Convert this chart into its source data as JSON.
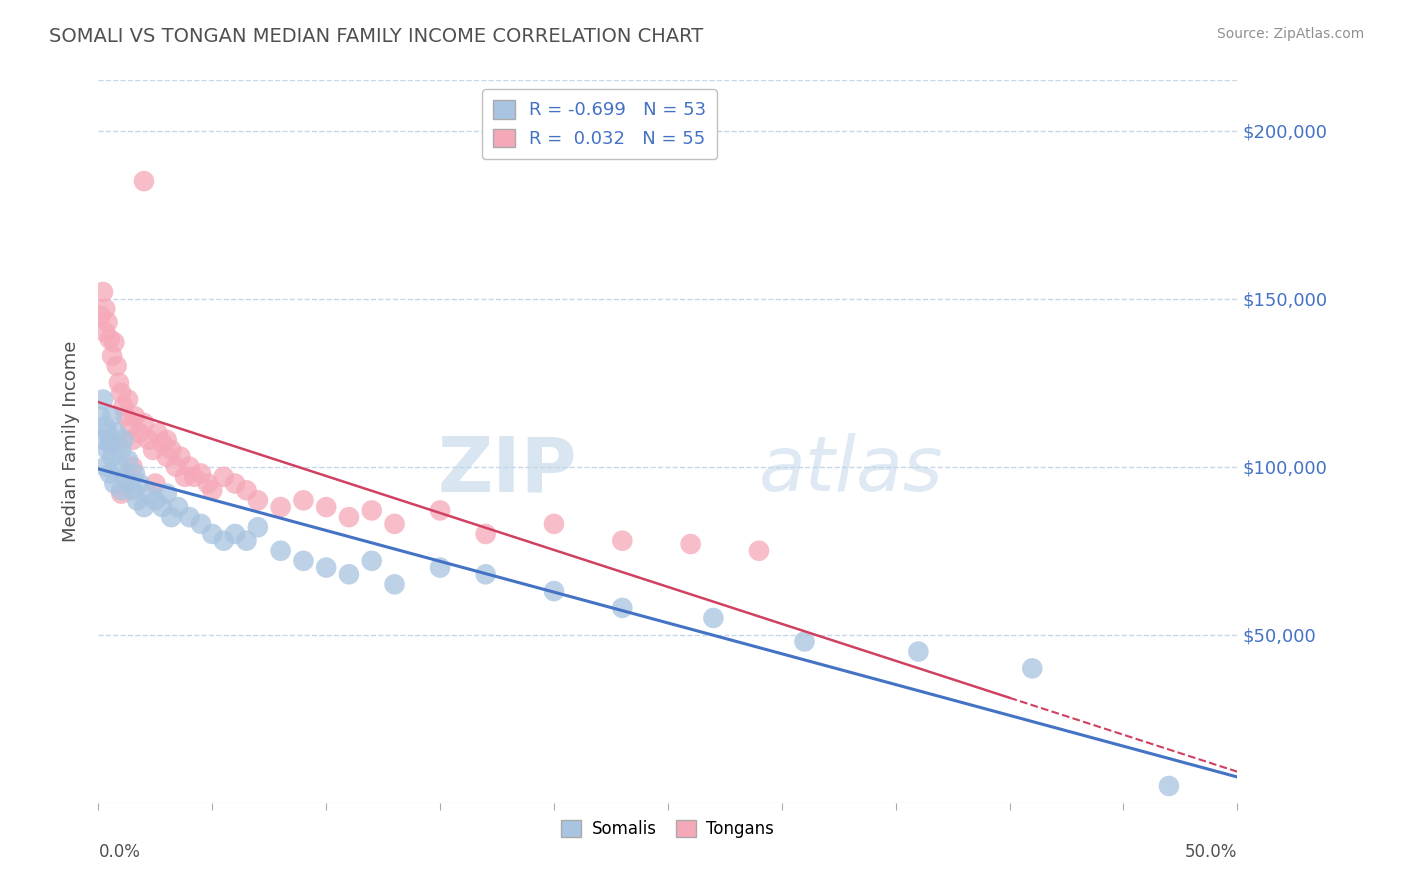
{
  "title": "SOMALI VS TONGAN MEDIAN FAMILY INCOME CORRELATION CHART",
  "source": "Source: ZipAtlas.com",
  "ylabel": "Median Family Income",
  "y_ticks": [
    50000,
    100000,
    150000,
    200000
  ],
  "y_tick_labels": [
    "$50,000",
    "$100,000",
    "$150,000",
    "$200,000"
  ],
  "xlim": [
    0.0,
    0.5
  ],
  "ylim": [
    0,
    215000
  ],
  "somali_R": "-0.699",
  "somali_N": "53",
  "tongan_R": "0.032",
  "tongan_N": "55",
  "somali_color": "#a8c4e0",
  "tongan_color": "#f5a8b8",
  "somali_line_color": "#4472c4",
  "tongan_line_color": "#d04060",
  "legend_label_somali": "Somalis",
  "legend_label_tongan": "Tongans",
  "somali_points_x": [
    0.001,
    0.002,
    0.002,
    0.003,
    0.003,
    0.004,
    0.004,
    0.005,
    0.005,
    0.006,
    0.006,
    0.007,
    0.008,
    0.009,
    0.01,
    0.01,
    0.011,
    0.012,
    0.013,
    0.014,
    0.015,
    0.016,
    0.017,
    0.018,
    0.02,
    0.022,
    0.025,
    0.028,
    0.03,
    0.032,
    0.035,
    0.04,
    0.045,
    0.05,
    0.055,
    0.06,
    0.065,
    0.07,
    0.08,
    0.09,
    0.1,
    0.11,
    0.12,
    0.13,
    0.15,
    0.17,
    0.2,
    0.23,
    0.27,
    0.31,
    0.36,
    0.41,
    0.47
  ],
  "somali_points_y": [
    115000,
    108000,
    120000,
    112000,
    100000,
    105000,
    110000,
    98000,
    107000,
    103000,
    115000,
    95000,
    110000,
    100000,
    93000,
    105000,
    108000,
    97000,
    102000,
    95000,
    93000,
    98000,
    90000,
    95000,
    88000,
    92000,
    90000,
    88000,
    92000,
    85000,
    88000,
    85000,
    83000,
    80000,
    78000,
    80000,
    78000,
    82000,
    75000,
    72000,
    70000,
    68000,
    72000,
    65000,
    70000,
    68000,
    63000,
    58000,
    55000,
    48000,
    45000,
    40000,
    5000
  ],
  "tongan_points_x": [
    0.001,
    0.002,
    0.003,
    0.003,
    0.004,
    0.005,
    0.006,
    0.007,
    0.008,
    0.009,
    0.01,
    0.011,
    0.012,
    0.013,
    0.014,
    0.015,
    0.016,
    0.018,
    0.02,
    0.022,
    0.024,
    0.026,
    0.028,
    0.03,
    0.032,
    0.034,
    0.036,
    0.038,
    0.04,
    0.042,
    0.045,
    0.048,
    0.05,
    0.055,
    0.06,
    0.065,
    0.07,
    0.08,
    0.09,
    0.1,
    0.11,
    0.12,
    0.13,
    0.15,
    0.17,
    0.2,
    0.23,
    0.26,
    0.29,
    0.02,
    0.01,
    0.008,
    0.025,
    0.015,
    0.03
  ],
  "tongan_points_y": [
    145000,
    152000,
    147000,
    140000,
    143000,
    138000,
    133000,
    137000,
    130000,
    125000,
    122000,
    118000,
    115000,
    120000,
    112000,
    108000,
    115000,
    110000,
    113000,
    108000,
    105000,
    110000,
    107000,
    103000,
    105000,
    100000,
    103000,
    97000,
    100000,
    97000,
    98000,
    95000,
    93000,
    97000,
    95000,
    93000,
    90000,
    88000,
    90000,
    88000,
    85000,
    87000,
    83000,
    87000,
    80000,
    83000,
    78000,
    77000,
    75000,
    185000,
    92000,
    107000,
    95000,
    100000,
    108000
  ],
  "watermark_zip": "ZIP",
  "watermark_atlas": "atlas",
  "background_color": "#ffffff",
  "grid_color": "#c8d8e8",
  "title_color": "#505050",
  "axis_tick_color": "#4472c4",
  "x_tick_positions": [
    0.0,
    0.05,
    0.1,
    0.15,
    0.2,
    0.25,
    0.3,
    0.35,
    0.4,
    0.45,
    0.5
  ]
}
